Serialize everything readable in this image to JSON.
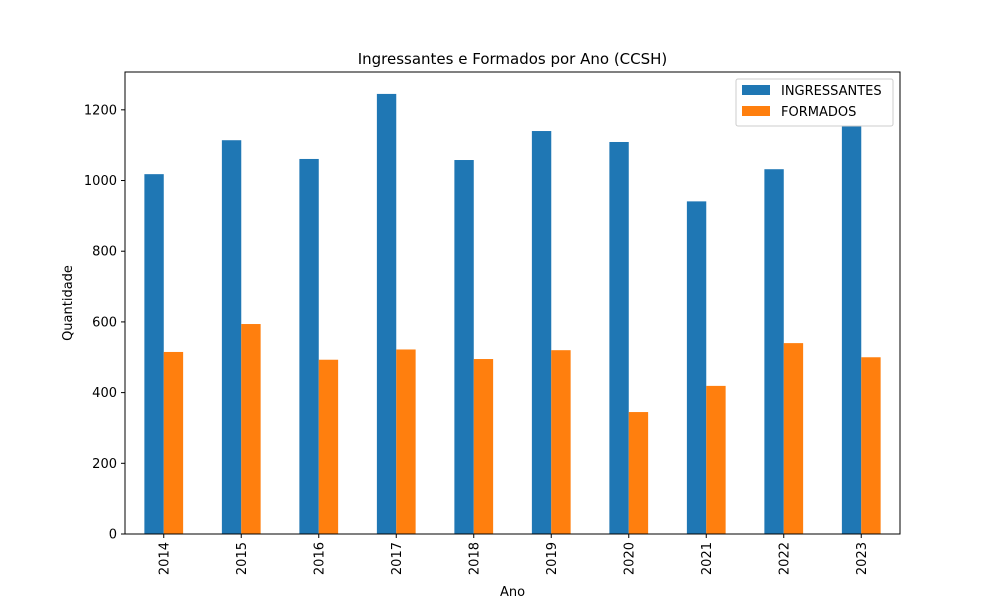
{
  "chart_data": {
    "type": "bar",
    "title": "Ingressantes e Formados por Ano (CCSH)",
    "xlabel": "Ano",
    "ylabel": "Quantidade",
    "categories": [
      "2014",
      "2015",
      "2016",
      "2017",
      "2018",
      "2019",
      "2020",
      "2021",
      "2022",
      "2023"
    ],
    "series": [
      {
        "name": "INGRESSANTES",
        "color": "#1f77b4",
        "values": [
          1018,
          1114,
          1061,
          1245,
          1058,
          1140,
          1109,
          941,
          1032,
          1155
        ]
      },
      {
        "name": "FORMADOS",
        "color": "#ff7f0e",
        "values": [
          515,
          594,
          493,
          522,
          495,
          520,
          345,
          419,
          540,
          500
        ]
      }
    ],
    "ylim": [
      0,
      1307
    ],
    "yticks": [
      0,
      200,
      400,
      600,
      800,
      1000,
      1200
    ],
    "legend_position": "top-right",
    "grid": false
  }
}
